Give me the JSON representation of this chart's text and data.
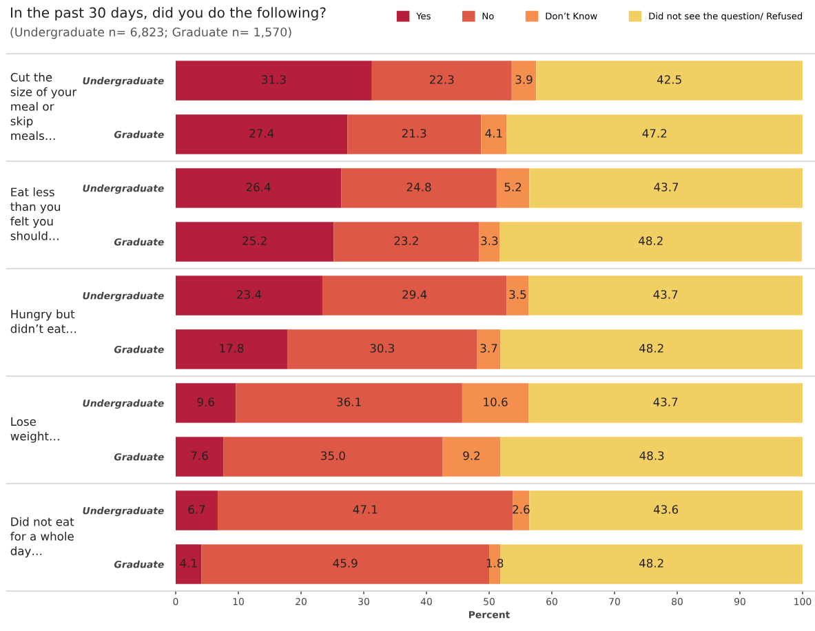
{
  "chart_data": {
    "type": "bar",
    "orientation": "horizontal",
    "stacked": true,
    "title": "In the past 30 days, did you do the following?",
    "subtitle": "(Undergraduate n= 6,823; Graduate n= 1,570)",
    "xlabel": "Percent",
    "categories": [
      "Undergraduate",
      "Graduate",
      "Undergraduate",
      "Graduate",
      "Undergraduate",
      "Graduate",
      "Undergraduate",
      "Graduate",
      "Undergraduate",
      "Graduate"
    ],
    "annotations": [
      "Cut the\nsize of your\nmeal or\nskip\nmeals…",
      "Eat less\nthan you\nfelt you\nshould…",
      "Hungry but\ndidn’t eat…",
      "Lose\nweight…",
      "Did not eat\nfor a whole\nday…"
    ],
    "series": [
      {
        "name": "Yes",
        "color": "#b51f3c",
        "values": [
          31.3,
          27.4,
          26.4,
          25.2,
          23.4,
          17.8,
          9.6,
          7.6,
          6.7,
          4.1
        ]
      },
      {
        "name": "No",
        "color": "#de5846",
        "values": [
          22.3,
          21.3,
          24.8,
          23.2,
          29.4,
          30.3,
          36.1,
          35.0,
          47.1,
          45.9
        ],
        "value_labels": [
          "22.3",
          "21.3",
          "24.8",
          "23.2",
          "29.4",
          "30.3",
          "36.1",
          "35.0",
          "47.1",
          "45.9"
        ]
      },
      {
        "name": "Don’t Know",
        "color": "#f58f4e",
        "values": [
          3.9,
          4.1,
          5.2,
          3.3,
          3.5,
          3.7,
          10.6,
          9.2,
          2.6,
          1.8
        ]
      },
      {
        "name": "Did not see the question/ Refused",
        "color": "#f2cf63",
        "values": [
          42.5,
          47.2,
          43.7,
          48.2,
          43.7,
          48.2,
          43.7,
          48.3,
          43.6,
          48.2
        ]
      }
    ],
    "xlim": [
      0,
      100
    ],
    "xticks": [
      0,
      10,
      20,
      30,
      40,
      50,
      60,
      70,
      80,
      90,
      100
    ],
    "data_labels": true,
    "grid": false,
    "legend": "top right"
  }
}
